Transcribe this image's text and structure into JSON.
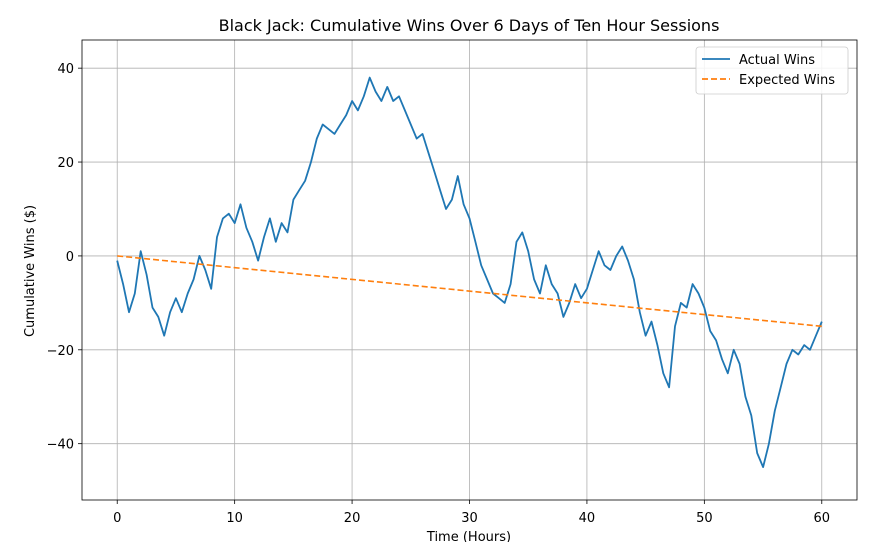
{
  "chart_data": {
    "type": "line",
    "title": "Black Jack: Cumulative Wins Over 6 Days of Ten Hour Sessions",
    "xlabel": "Time (Hours)",
    "ylabel": "Cumulative Wins ($)",
    "xlim": [
      -3,
      63
    ],
    "ylim": [
      -52,
      46
    ],
    "xticks": [
      0,
      10,
      20,
      30,
      40,
      50,
      60
    ],
    "yticks": [
      -40,
      -20,
      0,
      20,
      40
    ],
    "grid": true,
    "legend_position": "top-right",
    "series": [
      {
        "name": "Actual Wins",
        "style": "solid",
        "color": "#1f77b4",
        "x": [
          0,
          0.5,
          1,
          1.5,
          2,
          2.5,
          3,
          3.5,
          4,
          4.5,
          5,
          5.5,
          6,
          6.5,
          7,
          7.5,
          8,
          8.5,
          9,
          9.5,
          10,
          10.5,
          11,
          11.5,
          12,
          12.5,
          13,
          13.5,
          14,
          14.5,
          15,
          15.5,
          16,
          16.5,
          17,
          17.5,
          18,
          18.5,
          19,
          19.5,
          20,
          20.5,
          21,
          21.5,
          22,
          22.5,
          23,
          23.5,
          24,
          24.5,
          25,
          25.5,
          26,
          26.5,
          27,
          27.5,
          28,
          28.5,
          29,
          29.5,
          30,
          30.5,
          31,
          31.5,
          32,
          32.5,
          33,
          33.5,
          34,
          34.5,
          35,
          35.5,
          36,
          36.5,
          37,
          37.5,
          38,
          38.5,
          39,
          39.5,
          40,
          40.5,
          41,
          41.5,
          42,
          42.5,
          43,
          43.5,
          44,
          44.5,
          45,
          45.5,
          46,
          46.5,
          47,
          47.5,
          48,
          48.5,
          49,
          49.5,
          50,
          50.5,
          51,
          51.5,
          52,
          52.5,
          53,
          53.5,
          54,
          54.5,
          55,
          55.5,
          56,
          56.5,
          57,
          57.5,
          58,
          58.5,
          59,
          59.5,
          60
        ],
        "values": [
          -1,
          -6,
          -12,
          -8,
          1,
          -4,
          -11,
          -13,
          -17,
          -12,
          -9,
          -12,
          -8,
          -5,
          0,
          -3,
          -7,
          4,
          8,
          9,
          7,
          11,
          6,
          3,
          -1,
          4,
          8,
          3,
          7,
          5,
          12,
          14,
          16,
          20,
          25,
          28,
          27,
          26,
          28,
          30,
          33,
          31,
          34,
          38,
          35,
          33,
          36,
          33,
          34,
          31,
          28,
          25,
          26,
          22,
          18,
          14,
          10,
          12,
          17,
          11,
          8,
          3,
          -2,
          -5,
          -8,
          -9,
          -10,
          -6,
          3,
          5,
          1,
          -5,
          -8,
          -2,
          -6,
          -8,
          -13,
          -10,
          -6,
          -9,
          -7,
          -3,
          1,
          -2,
          -3,
          0,
          2,
          -1,
          -5,
          -12,
          -17,
          -14,
          -19,
          -25,
          -28,
          -15,
          -10,
          -11,
          -6,
          -8,
          -11,
          -16,
          -18,
          -22,
          -25,
          -20,
          -23,
          -30,
          -34,
          -42,
          -45,
          -40,
          -33,
          -28,
          -23,
          -20,
          -21,
          -19,
          -20,
          -17,
          -14
        ]
      },
      {
        "name": "Expected Wins",
        "style": "dashed",
        "color": "#ff7f0e",
        "x": [
          0,
          60
        ],
        "values": [
          0,
          -15
        ]
      }
    ]
  }
}
